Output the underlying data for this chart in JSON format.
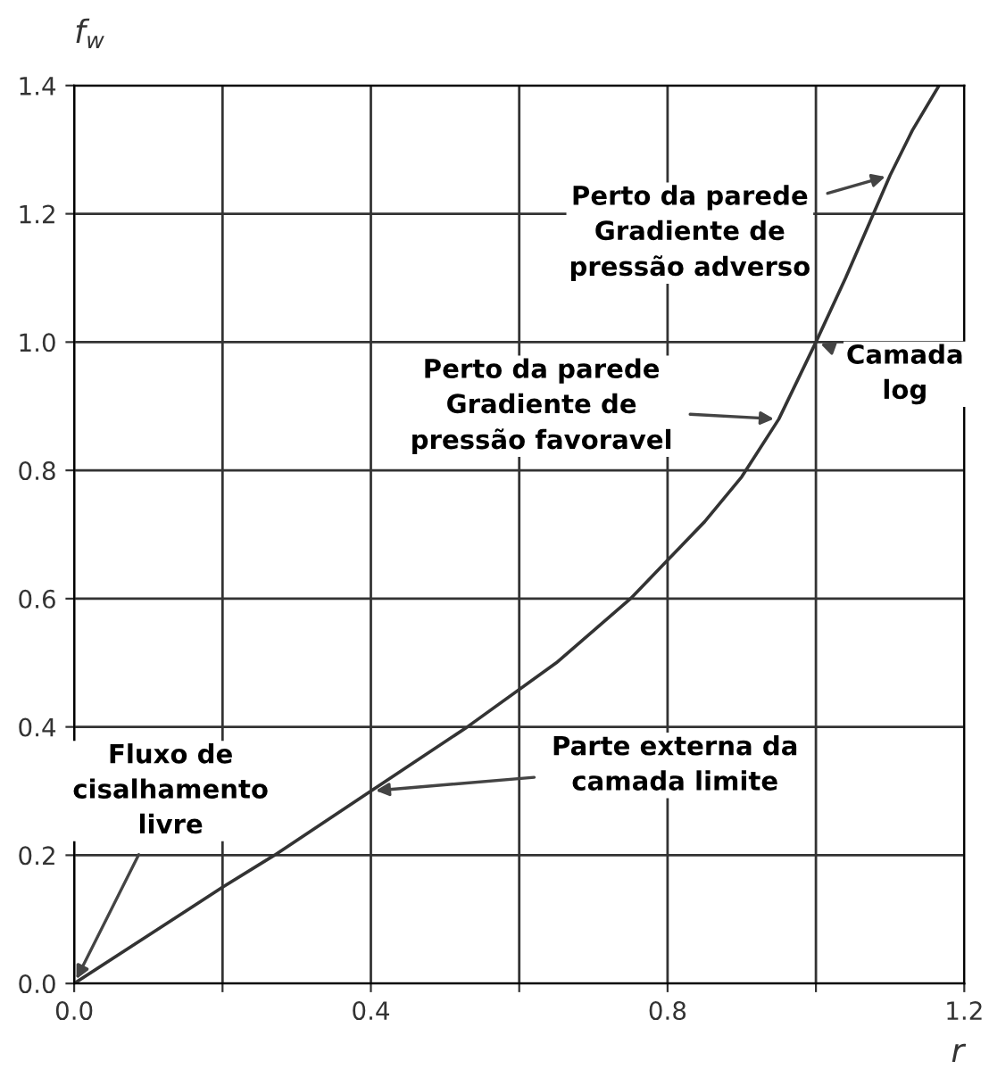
{
  "chart_data": {
    "type": "line",
    "xlabel": "r",
    "ylabel": "f$_{w}$",
    "x": [
      0.0,
      0.1,
      0.2,
      0.27,
      0.4,
      0.53,
      0.65,
      0.75,
      0.8,
      0.85,
      0.9,
      0.95,
      1.0,
      1.04,
      1.07,
      1.1,
      1.13,
      1.166
    ],
    "series": [
      {
        "color": "#333333",
        "values": [
          0.0,
          0.075,
          0.15,
          0.2,
          0.3,
          0.4,
          0.5,
          0.6,
          0.66,
          0.72,
          0.79,
          0.88,
          1.0,
          1.1,
          1.18,
          1.26,
          1.33,
          1.4
        ]
      }
    ],
    "xlim": [
      0.0,
      1.2
    ],
    "ylim": [
      0.0,
      1.4
    ],
    "xticks": [
      {
        "value": 0.0,
        "label": "0.0"
      },
      {
        "value": 0.2,
        "label": null
      },
      0.4,
      {
        "value": 0.6,
        "label": null
      },
      0.8,
      {
        "value": 1.0,
        "label": null
      },
      1.2
    ],
    "yticks": [
      {
        "value": 0.0,
        "label": "0.0"
      },
      0.2,
      0.4,
      0.6,
      0.8,
      {
        "value": 1.0,
        "label": "1.0"
      },
      1.2,
      1.4
    ],
    "grid": true,
    "marker": "none",
    "line_style": "solid",
    "annotations": [
      {
        "text": "Perto da parede\nGradiente de\npressão adverso",
        "x": 1.1,
        "y": 1.26
      },
      {
        "text": "Perto da parede\nGradiente de\npressão favoravel",
        "x": 0.95,
        "y": 0.88
      },
      {
        "text": "Camada\nlog",
        "x": 1.0,
        "y": 1.0
      },
      {
        "text": "Fluxo de\ncisalhamento\nlivre",
        "x": 0.0,
        "y": 0.0
      },
      {
        "text": "Parte externa da\ncamada limite",
        "x": 0.4,
        "y": 0.3
      }
    ]
  }
}
